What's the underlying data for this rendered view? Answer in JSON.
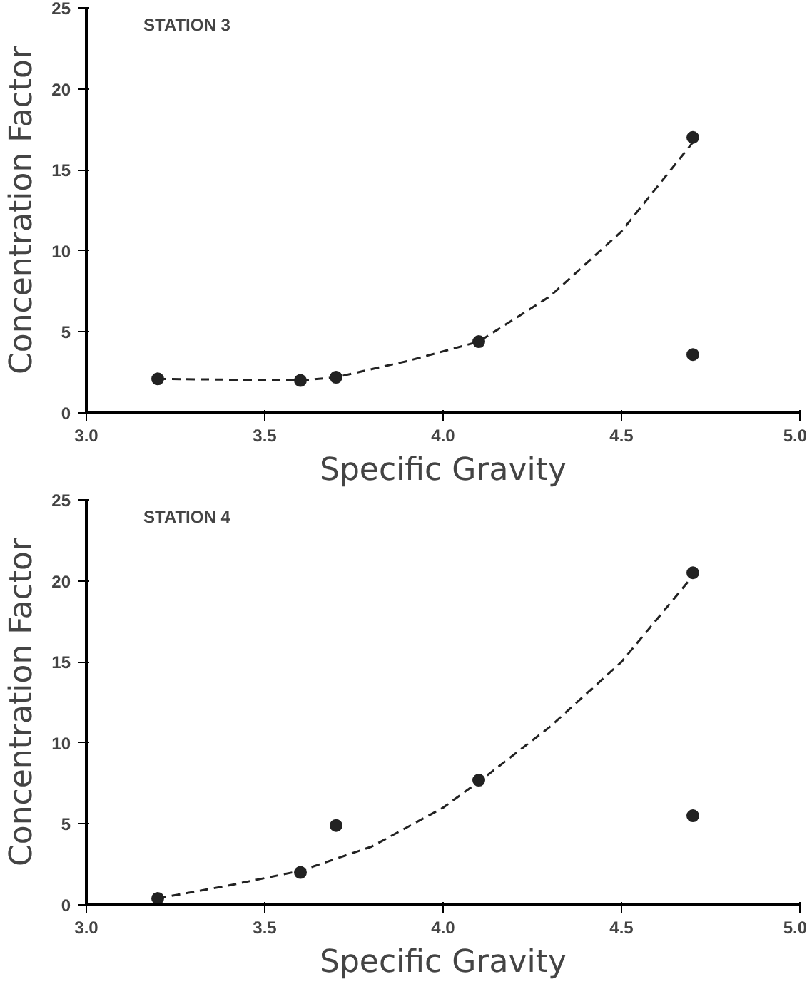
{
  "chart_data": [
    {
      "type": "scatter",
      "xlabel": "Specific Gravity",
      "ylabel": "Concentration Factor",
      "annotations": [
        "STATION 3"
      ],
      "grid": false,
      "xlim": [
        3.0,
        5.0
      ],
      "ylim": [
        0,
        25
      ],
      "xticks": [
        {
          "value": 3.0,
          "label": "3.0"
        },
        {
          "value": 3.5,
          "label": "3.5"
        },
        {
          "value": 4.0,
          "label": "4.0"
        },
        {
          "value": 4.5,
          "label": "4.5"
        },
        {
          "value": 5.0,
          "label": "5.0"
        }
      ],
      "yticks": [
        0,
        5,
        10,
        15,
        20,
        25
      ],
      "series": [
        {
          "marker": "circle",
          "color": "#222222",
          "x": [
            3.2,
            3.6,
            3.7,
            4.1,
            4.7,
            4.7
          ],
          "values": [
            2.1,
            2.0,
            2.2,
            4.4,
            17.0,
            3.6
          ]
        },
        {
          "type": "line",
          "marker": "none",
          "line_style": "dashed",
          "color": "#222222",
          "x": [
            3.2,
            3.6,
            3.7,
            3.9,
            4.1,
            4.3,
            4.5,
            4.7
          ],
          "values": [
            2.1,
            2.0,
            2.2,
            3.2,
            4.4,
            7.2,
            11.2,
            16.7
          ]
        }
      ]
    },
    {
      "type": "scatter",
      "xlabel": "Specific Gravity",
      "ylabel": "Concentration Factor",
      "annotations": [
        "STATION 4"
      ],
      "grid": false,
      "xlim": [
        3.0,
        5.0
      ],
      "ylim": [
        0,
        25
      ],
      "xticks": [
        {
          "value": 3.0,
          "label": "3.0"
        },
        {
          "value": 3.5,
          "label": "3.5"
        },
        {
          "value": 4.0,
          "label": "4.0"
        },
        {
          "value": 4.5,
          "label": "4.5"
        },
        {
          "value": 5.0,
          "label": "5.0"
        }
      ],
      "yticks": [
        0,
        5,
        10,
        15,
        20,
        25
      ],
      "series": [
        {
          "marker": "circle",
          "color": "#222222",
          "x": [
            3.2,
            3.6,
            3.7,
            4.1,
            4.7,
            4.7
          ],
          "values": [
            0.4,
            2.0,
            4.9,
            7.7,
            20.5,
            5.5
          ]
        },
        {
          "type": "line",
          "marker": "none",
          "line_style": "dashed",
          "color": "#222222",
          "x": [
            3.2,
            3.4,
            3.6,
            3.8,
            4.0,
            4.1,
            4.3,
            4.5,
            4.7
          ],
          "values": [
            0.4,
            1.2,
            2.1,
            3.6,
            6.0,
            7.6,
            11.0,
            15.0,
            20.3
          ]
        }
      ]
    }
  ]
}
